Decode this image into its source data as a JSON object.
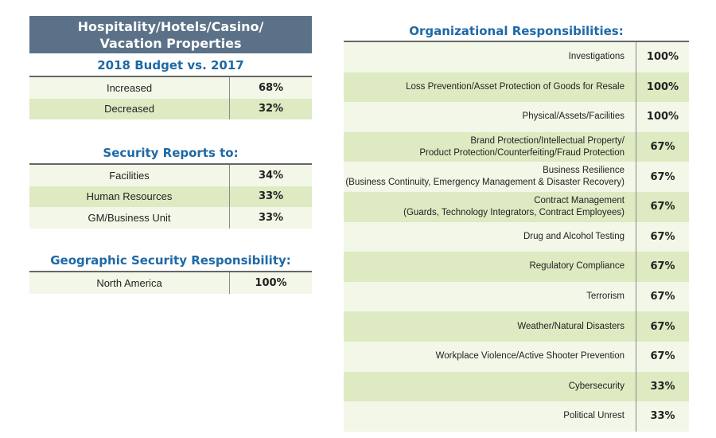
{
  "header": {
    "line1": "Hospitality/Hotels/Casino/",
    "line2": "Vacation Properties"
  },
  "budget": {
    "title": "2018 Budget vs. 2017",
    "rows": [
      {
        "label": "Increased",
        "value": "68%"
      },
      {
        "label": "Decreased",
        "value": "32%"
      }
    ]
  },
  "reports": {
    "title": "Security Reports to:",
    "rows": [
      {
        "label": "Facilities",
        "value": "34%"
      },
      {
        "label": "Human Resources",
        "value": "33%"
      },
      {
        "label": "GM/Business Unit",
        "value": "33%"
      }
    ]
  },
  "geo": {
    "title": "Geographic Security Responsibility:",
    "rows": [
      {
        "label": "North America",
        "value": "100%"
      }
    ]
  },
  "org": {
    "title": "Organizational Responsibilities:",
    "rows": [
      {
        "label": "Investigations",
        "value": "100%"
      },
      {
        "label": "Loss Prevention/Asset Protection of Goods for Resale",
        "value": "100%"
      },
      {
        "label": "Physical/Assets/Facilities",
        "value": "100%"
      },
      {
        "label": "Brand Protection/Intellectual Property/\nProduct Protection/Counterfeiting/Fraud Protection",
        "value": "67%"
      },
      {
        "label": "Business Resilience\n(Business Continuity, Emergency Management & Disaster Recovery)",
        "value": "67%"
      },
      {
        "label": "Contract Management\n(Guards, Technology Integrators, Contract Employees)",
        "value": "67%"
      },
      {
        "label": "Drug and Alcohol Testing",
        "value": "67%"
      },
      {
        "label": "Regulatory Compliance",
        "value": "67%"
      },
      {
        "label": "Terrorism",
        "value": "67%"
      },
      {
        "label": "Weather/Natural Disasters",
        "value": "67%"
      },
      {
        "label": "Workplace Violence/Active Shooter Prevention",
        "value": "67%"
      },
      {
        "label": "Cybersecurity",
        "value": "33%"
      },
      {
        "label": "Political Unrest",
        "value": "33%"
      }
    ]
  }
}
